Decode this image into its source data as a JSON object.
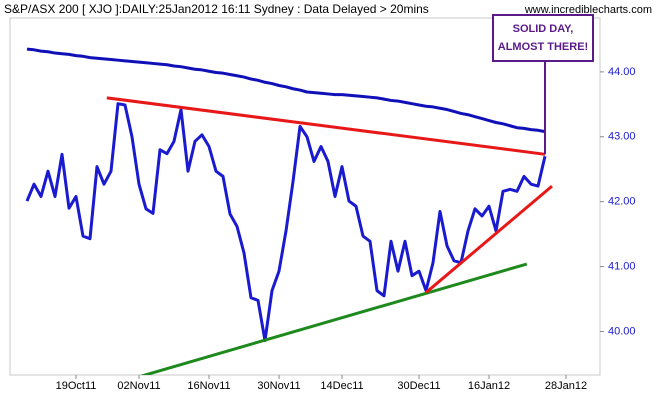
{
  "chart_data": {
    "type": "line",
    "title": "S&P/ASX 200 [ XJO ]:DAILY:25Jan2012 16:11 Sydney : Data Delayed > 20mins",
    "watermark": "www.incrediblecharts.com",
    "categories": [
      null,
      null,
      null,
      null,
      null,
      null,
      null,
      "19Oct11",
      null,
      null,
      null,
      null,
      null,
      null,
      null,
      null,
      "02Nov11",
      null,
      null,
      null,
      null,
      null,
      null,
      null,
      null,
      null,
      "16Nov11",
      null,
      null,
      null,
      null,
      null,
      null,
      null,
      null,
      null,
      "30Nov11",
      null,
      null,
      null,
      null,
      null,
      null,
      null,
      null,
      "14Dec11",
      null,
      null,
      null,
      null,
      null,
      null,
      null,
      null,
      null,
      null,
      "30Dec11",
      null,
      null,
      null,
      null,
      null,
      null,
      null,
      null,
      null,
      "16Jan12",
      null,
      null,
      null,
      null,
      null,
      null,
      null,
      null,
      null,
      null,
      "28Jan12"
    ],
    "series": [
      {
        "color": "#1a1ad0",
        "width": 3,
        "values": [
          42.01,
          42.27,
          42.08,
          42.47,
          42.08,
          42.73,
          41.9,
          42.08,
          41.47,
          41.43,
          42.54,
          42.27,
          42.47,
          43.51,
          43.49,
          43.0,
          42.27,
          41.89,
          41.82,
          42.8,
          42.74,
          42.93,
          43.42,
          42.47,
          42.93,
          43.03,
          42.85,
          42.47,
          42.39,
          41.81,
          41.62,
          41.21,
          40.52,
          40.48,
          39.86,
          40.63,
          40.93,
          41.55,
          42.31,
          43.16,
          43.0,
          42.62,
          42.85,
          42.62,
          42.08,
          42.54,
          42.01,
          41.93,
          41.47,
          41.39,
          40.63,
          40.55,
          41.39,
          40.93,
          41.39,
          40.86,
          40.93,
          40.63,
          41.06,
          41.85,
          41.32,
          41.09,
          41.06,
          41.55,
          41.89,
          41.78,
          41.93,
          41.55,
          42.16,
          42.19,
          42.16,
          42.39,
          42.27,
          42.24,
          42.7,
          null,
          null,
          null
        ]
      },
      {
        "color": "#1010b8",
        "width": 3,
        "values": [
          44.35,
          44.34,
          44.32,
          44.31,
          44.29,
          44.28,
          44.27,
          44.25,
          44.24,
          44.22,
          44.21,
          44.2,
          44.19,
          44.18,
          44.17,
          44.16,
          44.15,
          44.14,
          44.13,
          44.12,
          44.11,
          44.09,
          44.08,
          44.06,
          44.04,
          44.03,
          44.01,
          43.99,
          43.98,
          43.96,
          43.94,
          43.92,
          43.89,
          43.87,
          43.84,
          43.82,
          43.79,
          43.77,
          43.74,
          43.72,
          43.69,
          43.68,
          43.67,
          43.66,
          43.65,
          43.65,
          43.64,
          43.63,
          43.62,
          43.61,
          43.6,
          43.58,
          43.56,
          43.55,
          43.53,
          43.51,
          43.49,
          43.47,
          43.46,
          43.44,
          43.42,
          43.39,
          43.36,
          43.34,
          43.31,
          43.28,
          43.25,
          43.22,
          43.2,
          43.17,
          43.14,
          43.13,
          43.11,
          43.1,
          43.08,
          null,
          null,
          null
        ]
      }
    ],
    "trendlines": [
      {
        "color": "#e81818",
        "x": [
          11.4,
          74
        ],
        "values": [
          43.6,
          42.73
        ]
      },
      {
        "color": "#1e8a1e",
        "x": [
          5.4,
          71.4
        ],
        "values": [
          38.97,
          41.04
        ]
      },
      {
        "color": "#e81818",
        "x": [
          57,
          75
        ],
        "values": [
          40.6,
          42.24
        ]
      }
    ],
    "annotation": {
      "lines": [
        "SOLID DAY,",
        "ALMOST THERE!"
      ],
      "color": "#5a1a8a",
      "x": 74,
      "value": 42.73
    },
    "ylim": [
      39.33,
      44.83
    ],
    "yticks": [
      {
        "value": 40,
        "label": "40.00"
      },
      {
        "value": 41,
        "label": "41.00"
      },
      {
        "value": 42,
        "label": "42.00"
      },
      {
        "value": 43,
        "label": "43.00"
      },
      {
        "value": 44,
        "label": "44.00"
      }
    ],
    "axis_side": "right"
  }
}
